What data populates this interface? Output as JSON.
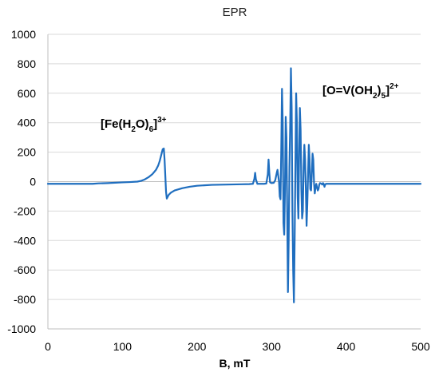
{
  "chart_data": {
    "type": "line",
    "title": "EPR",
    "xlabel": "B, mT",
    "ylabel": "",
    "xlim": [
      0,
      500
    ],
    "ylim": [
      -1000,
      1000
    ],
    "x_ticks": [
      0,
      100,
      200,
      300,
      400,
      500
    ],
    "y_ticks": [
      1000,
      800,
      600,
      400,
      200,
      0,
      -200,
      -400,
      -600,
      -800,
      -1000
    ],
    "grid": {
      "horizontal": true,
      "vertical": false
    },
    "legend": "none",
    "series_color": "#1f6ebf",
    "series": [
      {
        "x": [
          0,
          60,
          68,
          80,
          100,
          110,
          120,
          125,
          130,
          135,
          140,
          145,
          148,
          150,
          152,
          154,
          155.5,
          156.5,
          157.5,
          158.5,
          159.5,
          160.5,
          162,
          165,
          170,
          180,
          190,
          200,
          220,
          240,
          260,
          270,
          275,
          277,
          278,
          279,
          281,
          285,
          290,
          293,
          295,
          296,
          297,
          298,
          300,
          303,
          305,
          307,
          308,
          310,
          311,
          312,
          313,
          314,
          315,
          316,
          317,
          318,
          319,
          320,
          321,
          322,
          323,
          324,
          325,
          326,
          327,
          328,
          329,
          330,
          331,
          332,
          333,
          334,
          335,
          336,
          337,
          338,
          339,
          340,
          341,
          342,
          343,
          344,
          345,
          346,
          347,
          348,
          349,
          350,
          351,
          352,
          353,
          354,
          355,
          356,
          357,
          358,
          359,
          360,
          361,
          362,
          363,
          364,
          365,
          366,
          367,
          368,
          369,
          370,
          371,
          372,
          373,
          375,
          378,
          380,
          383,
          385,
          388,
          390,
          393,
          395,
          398,
          400,
          403,
          405,
          410,
          413,
          415,
          418,
          420,
          425,
          430,
          440,
          450,
          460,
          470,
          480,
          490,
          500
        ],
        "y": [
          -15,
          -15,
          -12,
          -10,
          -5,
          -3,
          0,
          5,
          15,
          30,
          50,
          80,
          110,
          140,
          180,
          220,
          225,
          150,
          40,
          -70,
          -115,
          -105,
          -90,
          -75,
          -60,
          -45,
          -35,
          -28,
          -22,
          -20,
          -18,
          -17,
          -15,
          20,
          60,
          15,
          -15,
          -15,
          -15,
          -13,
          50,
          150,
          60,
          -5,
          -10,
          -8,
          10,
          60,
          80,
          0,
          -100,
          -120,
          200,
          630,
          400,
          -280,
          -360,
          -50,
          440,
          300,
          -200,
          -750,
          -400,
          100,
          380,
          770,
          500,
          -200,
          -600,
          -820,
          -400,
          100,
          600,
          400,
          -100,
          -250,
          200,
          500,
          350,
          -50,
          -250,
          -200,
          100,
          250,
          150,
          -50,
          -300,
          -150,
          50,
          250,
          150,
          -50,
          -60,
          50,
          190,
          150,
          -10,
          -80,
          -40,
          -15,
          -40,
          -60,
          -50,
          -20,
          -10,
          -12,
          -15,
          -20,
          -10,
          -15,
          -35,
          -20,
          -15,
          -15,
          -15,
          -15,
          -15,
          -15,
          -15,
          -15,
          -15,
          -15,
          -15,
          -15,
          -15,
          -15,
          -15,
          -15,
          -15,
          -15,
          -15,
          -15,
          -15,
          -15,
          -15,
          -15,
          -15,
          -15,
          -15,
          -15
        ]
      }
    ],
    "annotations": [
      {
        "base": "[Fe(H",
        "sub1": "2",
        "mid": "O)",
        "sub2": "6",
        "close": "]",
        "sup": "3+"
      },
      {
        "base": "[O=V(OH",
        "sub1": "2",
        "mid": ")",
        "sub2": "5",
        "close": "]",
        "sup": "2+"
      }
    ]
  }
}
